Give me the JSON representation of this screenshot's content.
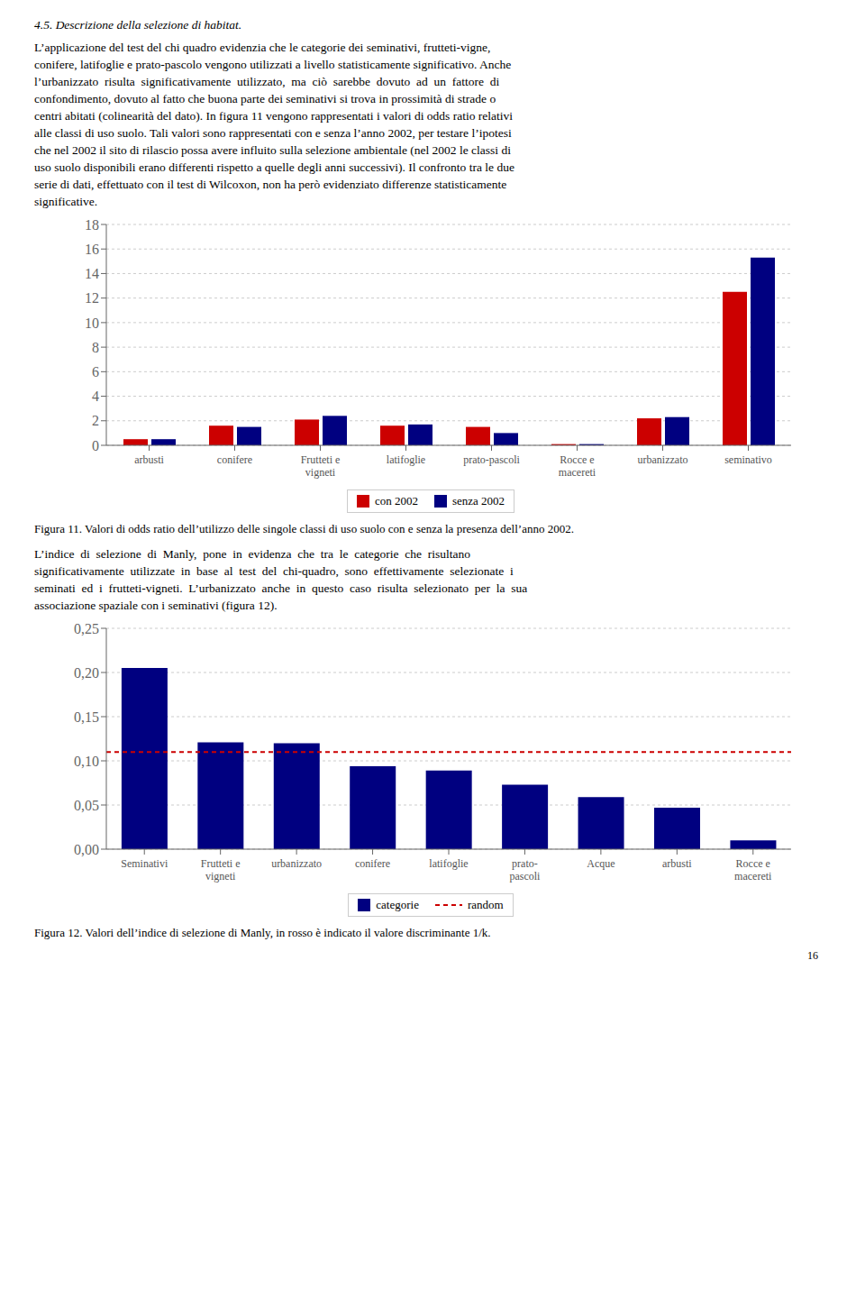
{
  "chart_data": [
    {
      "type": "bar",
      "title": "Figura 11. Valori di odds ratio dell’utilizzo delle singole classi di uso suolo con e senza la presenza dell’anno 2002.",
      "annotations": [
        "4.5.",
        "Descrizione della selezione di habitat.",
        "L’applicazione del test del chi quadro evidenzia che le categorie dei seminativi, frutteti-vigne,",
        "conifere, latifoglie e prato-pascolo vengono utilizzati a livello statisticamente significativo. Anche",
        "l’urbanizzato  risulta  significativamente  utilizzato,  ma  ciò  sarebbe  dovuto  ad  un  fattore  di",
        "confondimento, dovuto al fatto che buona parte dei seminativi si trova in prossimità di strade o",
        "centri abitati (colinearità del dato). In figura 11 vengono rappresentati i valori di odds ratio relativi",
        "alle classi di uso suolo. Tali valori sono rappresentati con e senza l’anno 2002, per testare l’ipotesi",
        "che nel 2002 il sito di rilascio possa avere influito sulla selezione ambientale (nel 2002 le classi di",
        "uso suolo disponibili erano differenti rispetto a quelle degli anni successivi). Il confronto tra le due",
        "serie di dati, effettuato con il test di Wilcoxon, non ha però evidenziato differenze statisticamente",
        "significative."
      ],
      "categories": [
        "arbusti",
        "conifere",
        "Frutteti e\nvigneti",
        "latifoglie",
        "prato-pascoli",
        "Rocce e\nmacereti",
        "urbanizzato",
        "seminativo"
      ],
      "series": [
        {
          "name": "con 2002",
          "type": "bar",
          "color": "#cc0000",
          "values": [
            0.5,
            1.6,
            2.1,
            1.6,
            1.5,
            0.1,
            2.2,
            12.5
          ]
        },
        {
          "name": "senza 2002",
          "type": "bar",
          "color": "#000080",
          "values": [
            0.5,
            1.5,
            2.4,
            1.7,
            1.0,
            0.1,
            2.3,
            15.3
          ]
        }
      ],
      "ylim": [
        0,
        18
      ],
      "yticks": [
        0,
        2,
        4,
        6,
        8,
        10,
        12,
        14,
        16,
        18
      ],
      "grid": true,
      "legend": "bottom"
    },
    {
      "type": "bar",
      "title": "Figura 12. Valori dell’indice di selezione di Manly, in rosso è indicato il valore discriminante 1/k.",
      "annotations": [
        "L’indice  di  selezione  di  Manly,  pone  in  evidenza  che  tra  le  categorie  che  risultano",
        "significativamente  utilizzate  in  base  al  test  del  chi-quadro,  sono  effettivamente  selezionate  i",
        "seminati  ed  i  frutteti-vigneti.  L’urbanizzato  anche  in  questo  caso  risulta  selezionato  per  la  sua",
        "associazione spaziale con i seminativi (figura 12).",
        "16"
      ],
      "categories": [
        "Seminativi",
        "Frutteti e\nvigneti",
        "urbanizzato",
        "conifere",
        "latifoglie",
        "prato-\npascoli",
        "Acque",
        "arbusti",
        "Rocce e\nmacereti"
      ],
      "series": [
        {
          "name": "categorie",
          "type": "bar",
          "color": "#000080",
          "values": [
            0.205,
            0.121,
            0.12,
            0.094,
            0.089,
            0.073,
            0.059,
            0.047,
            0.01
          ]
        },
        {
          "name": "random",
          "type": "hline",
          "color": "#cc0000",
          "line_style": "dashed",
          "value": 0.11
        }
      ],
      "ylim": [
        0,
        0.25
      ],
      "yticks": [
        {
          "value": 0.0,
          "label": "0,00"
        },
        {
          "value": 0.05,
          "label": "0,05"
        },
        {
          "value": 0.1,
          "label": "0,10"
        },
        {
          "value": 0.15,
          "label": "0,15"
        },
        {
          "value": 0.2,
          "label": "0,20"
        },
        {
          "value": 0.25,
          "label": "0,25"
        }
      ],
      "grid": true,
      "legend": "bottom"
    }
  ]
}
